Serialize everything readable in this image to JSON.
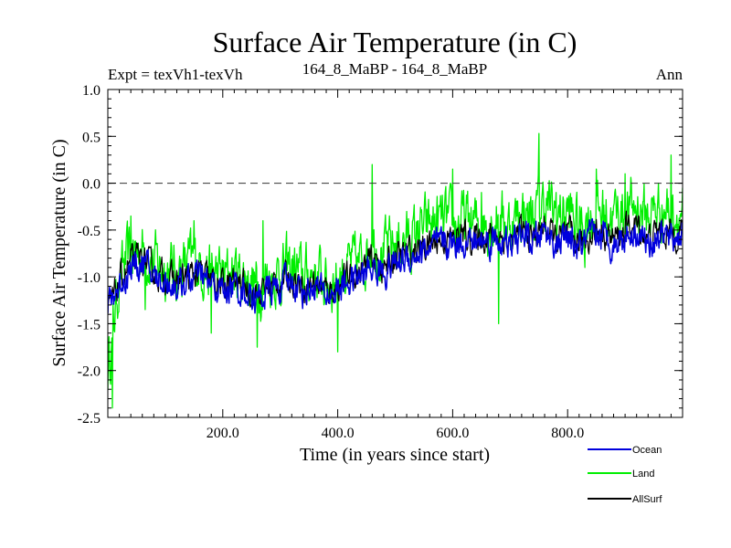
{
  "chart_data": {
    "type": "line",
    "title": "Surface Air Temperature (in C)",
    "subtitle_left": "Expt = texVh1-texVh",
    "subtitle_center": "164_8_MaBP - 164_8_MaBP",
    "subtitle_right": "Ann",
    "xlabel": "Time (in years since start)",
    "ylabel": "Surface Air Temperature (in C)",
    "xlim": [
      0,
      1000
    ],
    "ylim": [
      -2.5,
      1.0
    ],
    "x_ticks": [
      200,
      400,
      600,
      800
    ],
    "x_tick_labels": [
      "200.0",
      "400.0",
      "600.0",
      "800.0"
    ],
    "y_ticks": [
      1.0,
      0.5,
      0.0,
      -0.5,
      -1.0,
      -1.5,
      -2.0,
      -2.5
    ],
    "y_tick_labels": [
      "1.0",
      "0.5",
      "0.0",
      "-0.5",
      "-1.0",
      "-1.5",
      "-2.0",
      "-2.5"
    ],
    "reference_line": {
      "y": 0.0,
      "style": "dashed"
    },
    "legend_position": "bottom-right",
    "series": [
      {
        "name": "Land",
        "color": "#00ee00",
        "x": [
          0,
          20,
          40,
          60,
          80,
          100,
          120,
          140,
          160,
          180,
          200,
          220,
          240,
          260,
          280,
          300,
          320,
          340,
          360,
          380,
          400,
          420,
          440,
          460,
          480,
          500,
          520,
          540,
          560,
          580,
          600,
          620,
          640,
          660,
          680,
          700,
          720,
          740,
          760,
          780,
          800,
          820,
          840,
          860,
          880,
          900,
          920,
          940,
          960,
          980,
          1000
        ],
        "values": [
          -2.0,
          -1.0,
          -0.75,
          -0.7,
          -0.85,
          -0.9,
          -0.95,
          -0.85,
          -0.85,
          -0.95,
          -1.0,
          -0.95,
          -1.0,
          -1.1,
          -1.0,
          -0.95,
          -0.9,
          -1.0,
          -0.95,
          -1.05,
          -1.0,
          -0.9,
          -0.85,
          -0.6,
          -0.75,
          -0.65,
          -0.6,
          -0.55,
          -0.45,
          -0.4,
          -0.45,
          -0.4,
          -0.45,
          -0.4,
          -0.35,
          -0.45,
          -0.3,
          -0.35,
          -0.2,
          -0.35,
          -0.3,
          -0.45,
          -0.35,
          -0.3,
          -0.35,
          -0.3,
          -0.25,
          -0.35,
          -0.25,
          -0.3,
          -0.3
        ],
        "spikes": [
          [
            8,
            -2.4
          ],
          [
            40,
            -0.35
          ],
          [
            65,
            -1.35
          ],
          [
            150,
            -0.4
          ],
          [
            180,
            -1.6
          ],
          [
            260,
            -1.75
          ],
          [
            270,
            -0.4
          ],
          [
            400,
            -1.8
          ],
          [
            460,
            0.2
          ],
          [
            540,
            -0.4
          ],
          [
            600,
            0.15
          ],
          [
            650,
            -0.1
          ],
          [
            680,
            -1.5
          ],
          [
            750,
            0.53
          ],
          [
            780,
            -0.1
          ],
          [
            830,
            -0.9
          ],
          [
            850,
            0.15
          ],
          [
            900,
            0.1
          ],
          [
            980,
            0.3
          ]
        ]
      },
      {
        "name": "AllSurf",
        "color": "#000000",
        "x": [
          0,
          20,
          40,
          60,
          80,
          100,
          120,
          140,
          160,
          180,
          200,
          220,
          240,
          260,
          280,
          300,
          320,
          340,
          360,
          380,
          400,
          420,
          440,
          460,
          480,
          500,
          520,
          540,
          560,
          580,
          600,
          620,
          640,
          660,
          680,
          700,
          720,
          740,
          760,
          780,
          800,
          820,
          840,
          860,
          880,
          900,
          920,
          940,
          960,
          980,
          1000
        ],
        "values": [
          -1.4,
          -1.05,
          -0.85,
          -0.8,
          -0.95,
          -1.0,
          -1.05,
          -1.0,
          -0.95,
          -1.05,
          -1.1,
          -1.05,
          -1.1,
          -1.2,
          -1.1,
          -1.05,
          -1.0,
          -1.1,
          -1.05,
          -1.15,
          -1.1,
          -1.0,
          -0.95,
          -0.8,
          -0.9,
          -0.8,
          -0.75,
          -0.7,
          -0.65,
          -0.6,
          -0.6,
          -0.55,
          -0.6,
          -0.55,
          -0.55,
          -0.65,
          -0.5,
          -0.6,
          -0.45,
          -0.6,
          -0.55,
          -0.65,
          -0.55,
          -0.5,
          -0.6,
          -0.5,
          -0.45,
          -0.6,
          -0.5,
          -0.55,
          -0.5
        ]
      },
      {
        "name": "Ocean",
        "color": "#0000dd",
        "x": [
          0,
          20,
          40,
          60,
          80,
          100,
          120,
          140,
          160,
          180,
          200,
          220,
          240,
          260,
          280,
          300,
          320,
          340,
          360,
          380,
          400,
          420,
          440,
          460,
          480,
          500,
          520,
          540,
          560,
          580,
          600,
          620,
          640,
          660,
          680,
          700,
          720,
          740,
          760,
          780,
          800,
          820,
          840,
          860,
          880,
          900,
          920,
          940,
          960,
          980,
          1000
        ],
        "values": [
          -1.3,
          -1.1,
          -0.9,
          -0.85,
          -1.0,
          -1.05,
          -1.1,
          -1.05,
          -1.0,
          -1.1,
          -1.15,
          -1.1,
          -1.15,
          -1.25,
          -1.15,
          -1.1,
          -1.05,
          -1.15,
          -1.1,
          -1.2,
          -1.15,
          -1.05,
          -1.0,
          -0.9,
          -0.95,
          -0.85,
          -0.8,
          -0.75,
          -0.7,
          -0.65,
          -0.65,
          -0.6,
          -0.65,
          -0.6,
          -0.6,
          -0.7,
          -0.55,
          -0.65,
          -0.5,
          -0.65,
          -0.6,
          -0.7,
          -0.6,
          -0.55,
          -0.65,
          -0.55,
          -0.5,
          -0.65,
          -0.55,
          -0.6,
          -0.55
        ]
      }
    ]
  }
}
